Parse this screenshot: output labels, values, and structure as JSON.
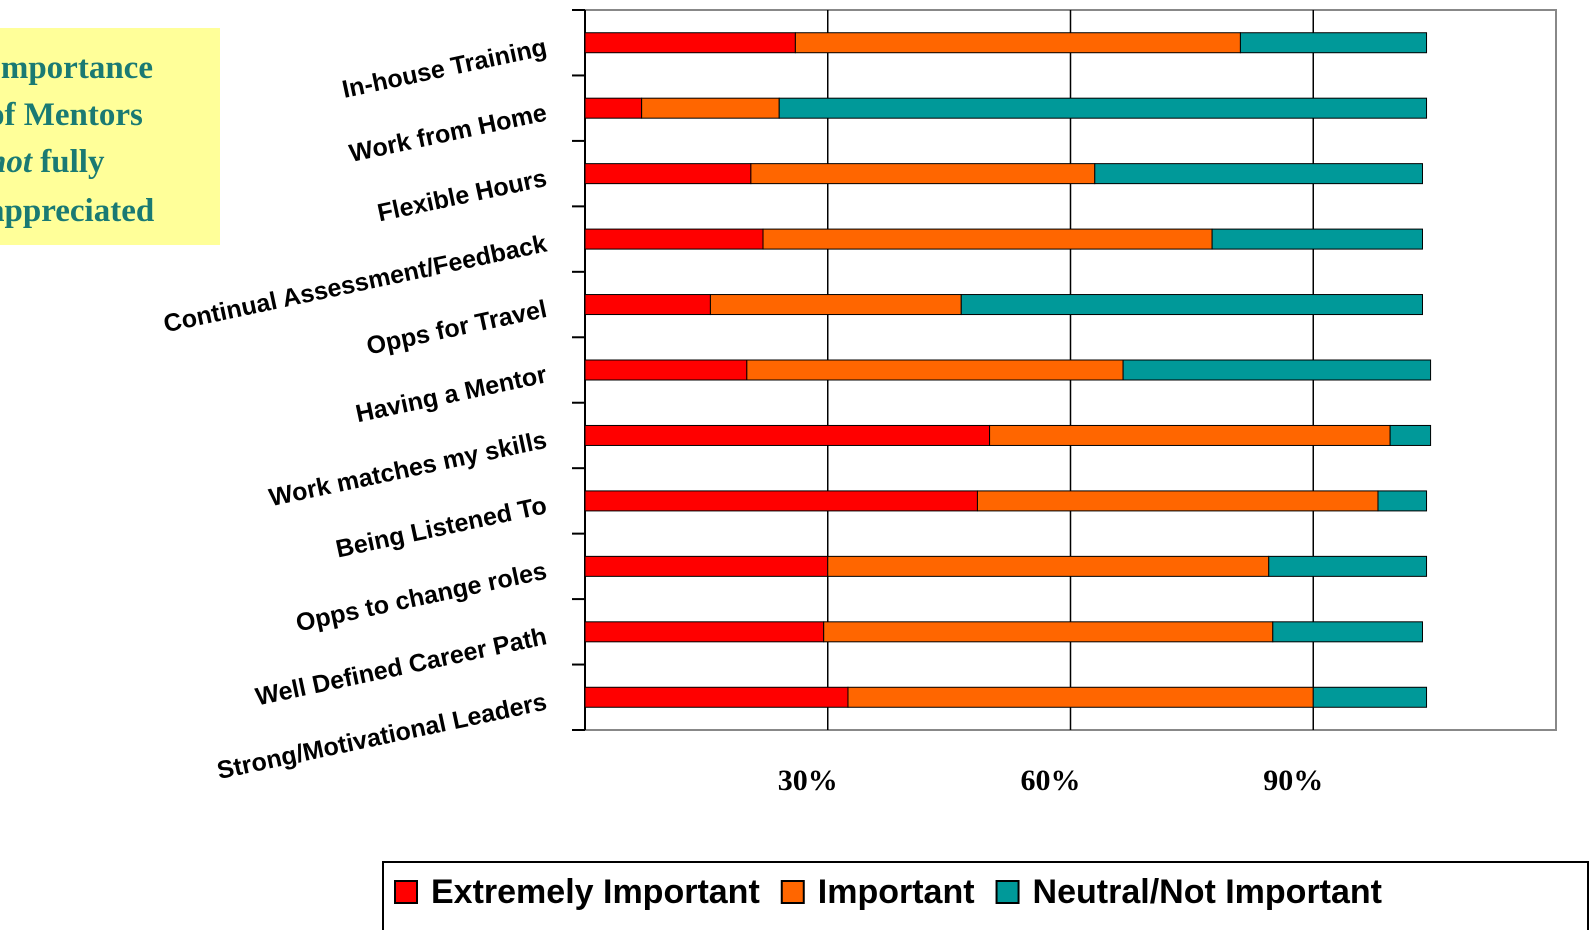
{
  "chart_data": {
    "type": "stacked-bar-horizontal",
    "annotation": [
      [
        "Importance"
      ],
      [
        "of Mentors"
      ],
      [
        "not",
        " fully"
      ],
      [
        "appreciated"
      ]
    ],
    "categories": [
      "In-house Training",
      "Work from Home",
      "Flexible Hours",
      "Continual Assessment/Feedback",
      "Opps for Travel",
      "Having a Mentor",
      "Work matches my skills",
      "Being Listened To",
      "Opps to change roles",
      "Well Defined Career Path",
      "Strong/Motivational Leaders"
    ],
    "series": [
      {
        "name": "Extremely Important",
        "color": "#ff0000",
        "values": [
          26,
          7,
          20.5,
          22,
          15.5,
          20,
          50,
          48.5,
          30,
          29.5,
          32.5
        ]
      },
      {
        "name": "Important",
        "color": "#ff6600",
        "values": [
          55,
          17,
          42.5,
          55.5,
          31,
          46.5,
          49.5,
          49.5,
          54.5,
          55.5,
          57.5
        ]
      },
      {
        "name": "Neutral/Not Important",
        "color": "#009999",
        "values": [
          23,
          80,
          40.5,
          26,
          57,
          38,
          5,
          6,
          19.5,
          18.5,
          14
        ]
      }
    ],
    "xlim": [
      0,
      120
    ],
    "xticks": [
      {
        "value": 30,
        "label": "30%"
      },
      {
        "value": 60,
        "label": "60%"
      },
      {
        "value": 90,
        "label": "90%"
      }
    ],
    "grid": true,
    "legend": "bottom"
  }
}
